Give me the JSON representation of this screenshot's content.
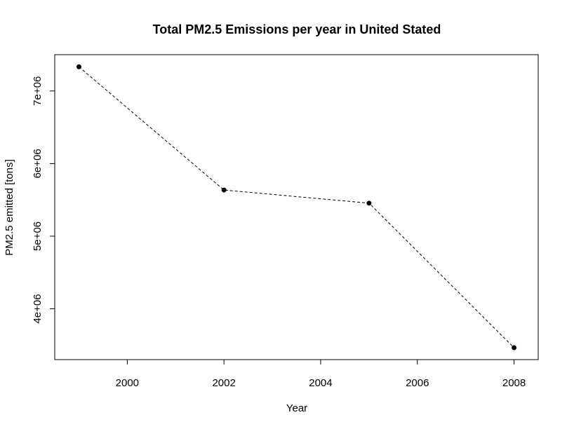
{
  "chart_data": {
    "type": "line",
    "title": "Total PM2.5 Emissions per year in United Stated",
    "xlabel": "Year",
    "ylabel": "PM2.5 emitted [tons]",
    "x": [
      1999,
      2002,
      2005,
      2008
    ],
    "series": [
      {
        "values": [
          7332967,
          5635780,
          5454703,
          3464206
        ]
      }
    ],
    "xlim": [
      1998.5,
      2008.5
    ],
    "ylim": [
      3300000,
      7500000
    ],
    "xticks": [
      2000,
      2002,
      2004,
      2006,
      2008
    ],
    "xtick_labels": [
      "2000",
      "2002",
      "2004",
      "2006",
      "2008"
    ],
    "yticks": [
      4000000,
      5000000,
      6000000,
      7000000
    ],
    "ytick_labels": [
      "4e+06",
      "5e+06",
      "6e+06",
      "7e+06"
    ],
    "line_style": "dashed",
    "marker": "filled-circle",
    "color": "#000000",
    "grid": false,
    "legend": "none"
  }
}
